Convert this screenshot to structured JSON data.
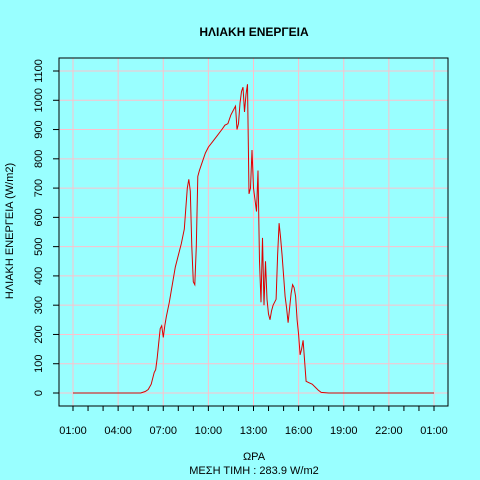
{
  "chart_data": {
    "type": "line",
    "title": "ΗΛΙΑΚΗ ΕΝΕΡΓΕΙΑ",
    "xlabel": "ΩΡΑ",
    "ylabel": "ΗΛΙΑΚΗ ΕΝΕΡΓΕΙΑ (W/m2)",
    "note": "ΜΕΣΗ ΤΙΜΗ : 283.9 W/m2",
    "xlim": [
      0,
      24
    ],
    "ylim": [
      0,
      1100
    ],
    "x_ticks": [
      "01:00",
      "04:00",
      "07:00",
      "10:00",
      "13:00",
      "16:00",
      "19:00",
      "22:00",
      "01:00"
    ],
    "y_ticks": [
      0,
      100,
      200,
      300,
      400,
      500,
      600,
      700,
      800,
      900,
      1000,
      1100
    ],
    "grid": true,
    "colors": {
      "background": "#99ffff",
      "line": "#dd0000",
      "grid": "#ffc0cb"
    },
    "series": [
      {
        "points": [
          [
            0,
            0
          ],
          [
            1,
            0
          ],
          [
            2,
            0
          ],
          [
            3,
            0
          ],
          [
            4,
            0
          ],
          [
            4.5,
            0
          ],
          [
            4.8,
            5
          ],
          [
            5.0,
            12
          ],
          [
            5.2,
            30
          ],
          [
            5.4,
            70
          ],
          [
            5.5,
            80
          ],
          [
            5.6,
            120
          ],
          [
            5.7,
            170
          ],
          [
            5.8,
            220
          ],
          [
            5.9,
            230
          ],
          [
            6.0,
            190
          ],
          [
            6.1,
            230
          ],
          [
            6.2,
            260
          ],
          [
            6.4,
            310
          ],
          [
            6.6,
            370
          ],
          [
            6.8,
            430
          ],
          [
            7.0,
            470
          ],
          [
            7.2,
            510
          ],
          [
            7.4,
            560
          ],
          [
            7.6,
            700
          ],
          [
            7.7,
            730
          ],
          [
            7.8,
            690
          ],
          [
            7.9,
            500
          ],
          [
            8.0,
            380
          ],
          [
            8.1,
            370
          ],
          [
            8.2,
            500
          ],
          [
            8.3,
            740
          ],
          [
            8.4,
            760
          ],
          [
            8.6,
            790
          ],
          [
            8.8,
            820
          ],
          [
            9.0,
            840
          ],
          [
            9.3,
            860
          ],
          [
            9.6,
            880
          ],
          [
            9.9,
            900
          ],
          [
            10.1,
            915
          ],
          [
            10.3,
            920
          ],
          [
            10.5,
            950
          ],
          [
            10.7,
            970
          ],
          [
            10.8,
            980
          ],
          [
            10.9,
            900
          ],
          [
            11.0,
            920
          ],
          [
            11.1,
            990
          ],
          [
            11.2,
            1030
          ],
          [
            11.3,
            1045
          ],
          [
            11.4,
            960
          ],
          [
            11.5,
            1020
          ],
          [
            11.6,
            1055
          ],
          [
            11.7,
            680
          ],
          [
            11.8,
            700
          ],
          [
            11.9,
            830
          ],
          [
            12.0,
            700
          ],
          [
            12.1,
            660
          ],
          [
            12.2,
            620
          ],
          [
            12.3,
            760
          ],
          [
            12.4,
            450
          ],
          [
            12.5,
            310
          ],
          [
            12.6,
            530
          ],
          [
            12.7,
            300
          ],
          [
            12.8,
            450
          ],
          [
            12.9,
            320
          ],
          [
            13.0,
            270
          ],
          [
            13.1,
            250
          ],
          [
            13.2,
            280
          ],
          [
            13.3,
            300
          ],
          [
            13.5,
            320
          ],
          [
            13.6,
            470
          ],
          [
            13.7,
            580
          ],
          [
            13.8,
            530
          ],
          [
            13.9,
            470
          ],
          [
            14.0,
            400
          ],
          [
            14.1,
            330
          ],
          [
            14.2,
            290
          ],
          [
            14.3,
            240
          ],
          [
            14.4,
            290
          ],
          [
            14.5,
            340
          ],
          [
            14.6,
            370
          ],
          [
            14.7,
            360
          ],
          [
            14.8,
            330
          ],
          [
            14.9,
            250
          ],
          [
            15.0,
            200
          ],
          [
            15.1,
            130
          ],
          [
            15.2,
            150
          ],
          [
            15.3,
            180
          ],
          [
            15.4,
            110
          ],
          [
            15.5,
            40
          ],
          [
            15.7,
            35
          ],
          [
            15.9,
            30
          ],
          [
            16.1,
            20
          ],
          [
            16.3,
            10
          ],
          [
            16.5,
            2
          ],
          [
            17,
            0
          ],
          [
            18,
            0
          ],
          [
            19,
            0
          ],
          [
            20,
            0
          ],
          [
            21,
            0
          ],
          [
            22,
            0
          ],
          [
            23,
            0
          ],
          [
            24,
            0
          ]
        ]
      }
    ]
  }
}
